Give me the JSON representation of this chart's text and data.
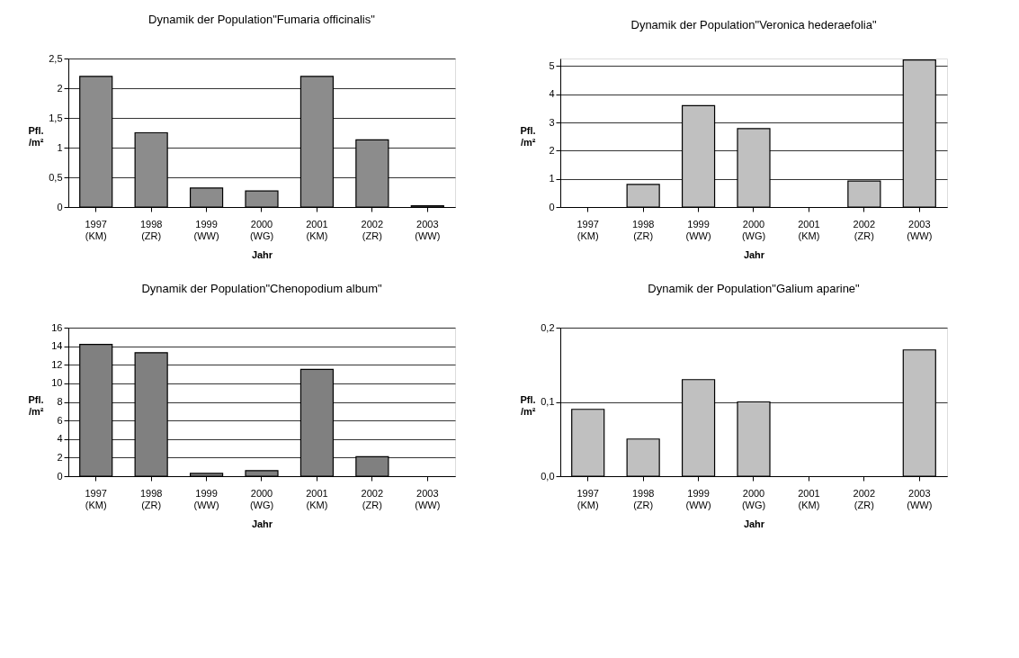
{
  "chart_data": [
    {
      "type": "bar",
      "title": "Dynamik der Population\"Fumaria officinalis\"",
      "xlabel": "Jahr",
      "ylabel": "Pfl. /m²",
      "categories": [
        "1997 (KM)",
        "1998 (ZR)",
        "1999 (WW)",
        "2000 (WG)",
        "2001 (KM)",
        "2002 (ZR)",
        "2003 (WW)"
      ],
      "values": [
        2.2,
        1.25,
        0.32,
        0.27,
        2.2,
        1.13,
        0.02
      ],
      "color": "#8c8c8c",
      "ylim": [
        0,
        2.5
      ],
      "yticks": [
        0,
        {
          "value": 0.5,
          "label": "0,5"
        },
        1,
        {
          "value": 1.5,
          "label": "1,5"
        },
        2,
        {
          "value": 2.5,
          "label": "2,5"
        }
      ],
      "grid": "y"
    },
    {
      "type": "bar",
      "title": "Dynamik der Population\"Veronica hederaefolia\"",
      "xlabel": "Jahr",
      "ylabel": "Pfl. /m²",
      "categories": [
        "1997 (KM)",
        "1998 (ZR)",
        "1999 (WW)",
        "2000 (WG)",
        "2001 (KM)",
        "2002 (ZR)",
        "2003 (WW)"
      ],
      "values": [
        null,
        0.8,
        3.6,
        2.78,
        null,
        0.92,
        5.22
      ],
      "color": "#c0c0c0",
      "ylim": [
        0,
        5.27
      ],
      "yticks": [
        0,
        1,
        2,
        3,
        4,
        5
      ],
      "grid": "y"
    },
    {
      "type": "bar",
      "title": "Dynamik der Population\"Chenopodium album\"",
      "xlabel": "Jahr",
      "ylabel": "Pfl. /m²",
      "categories": [
        "1997 (KM)",
        "1998 (ZR)",
        "1999 (WW)",
        "2000 (WG)",
        "2001 (KM)",
        "2002 (ZR)",
        "2003 (WW)"
      ],
      "values": [
        14.2,
        13.3,
        0.3,
        0.6,
        11.5,
        2.1,
        null
      ],
      "color": "#808080",
      "ylim": [
        0,
        16
      ],
      "yticks": [
        0,
        2,
        4,
        6,
        8,
        10,
        12,
        14,
        16
      ],
      "grid": "y"
    },
    {
      "type": "bar",
      "title": "Dynamik der Population\"Galium aparine\"",
      "xlabel": "Jahr",
      "ylabel": "Pfl. /m²",
      "categories": [
        "1997 (KM)",
        "1998 (ZR)",
        "1999 (WW)",
        "2000 (WG)",
        "2001 (KM)",
        "2002 (ZR)",
        "2003 (WW)"
      ],
      "values": [
        0.09,
        0.05,
        0.13,
        0.1,
        null,
        null,
        0.17
      ],
      "color": "#c0c0c0",
      "ylim": [
        0,
        0.2
      ],
      "yticks": [
        {
          "value": 0,
          "label": "0,0"
        },
        {
          "value": 0.1,
          "label": "0,1"
        },
        {
          "value": 0.2,
          "label": "0,2"
        }
      ],
      "grid": "y"
    }
  ]
}
